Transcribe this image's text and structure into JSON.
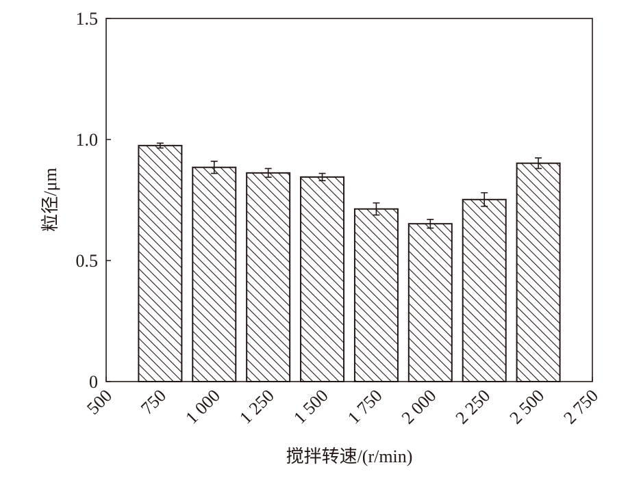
{
  "chart_data": {
    "type": "bar",
    "x": [
      750,
      1000,
      1250,
      1500,
      1750,
      2000,
      2250,
      2500
    ],
    "values": [
      0.975,
      0.885,
      0.862,
      0.845,
      0.713,
      0.652,
      0.752,
      0.902
    ],
    "errors": [
      0.01,
      0.025,
      0.018,
      0.015,
      0.025,
      0.018,
      0.028,
      0.022
    ],
    "xlabel": "搅拌转速/(r/min)",
    "ylabel": "粒径/μm",
    "xlim": [
      500,
      2750
    ],
    "xticks": [
      500,
      750,
      {
        "value": 1000,
        "label": "1 000"
      },
      {
        "value": 1250,
        "label": "1 250"
      },
      {
        "value": 1500,
        "label": "1 500"
      },
      {
        "value": 1750,
        "label": "1 750"
      },
      {
        "value": 2000,
        "label": "2 000"
      },
      {
        "value": 2250,
        "label": "2 250"
      },
      {
        "value": 2500,
        "label": "2 500"
      },
      {
        "value": 2750,
        "label": "2 750"
      }
    ],
    "ylim": [
      0,
      1.5
    ],
    "yticks": [
      0,
      0.5,
      {
        "value": 1.0,
        "label": "1.0"
      },
      1.5
    ],
    "color": "#231815"
  }
}
